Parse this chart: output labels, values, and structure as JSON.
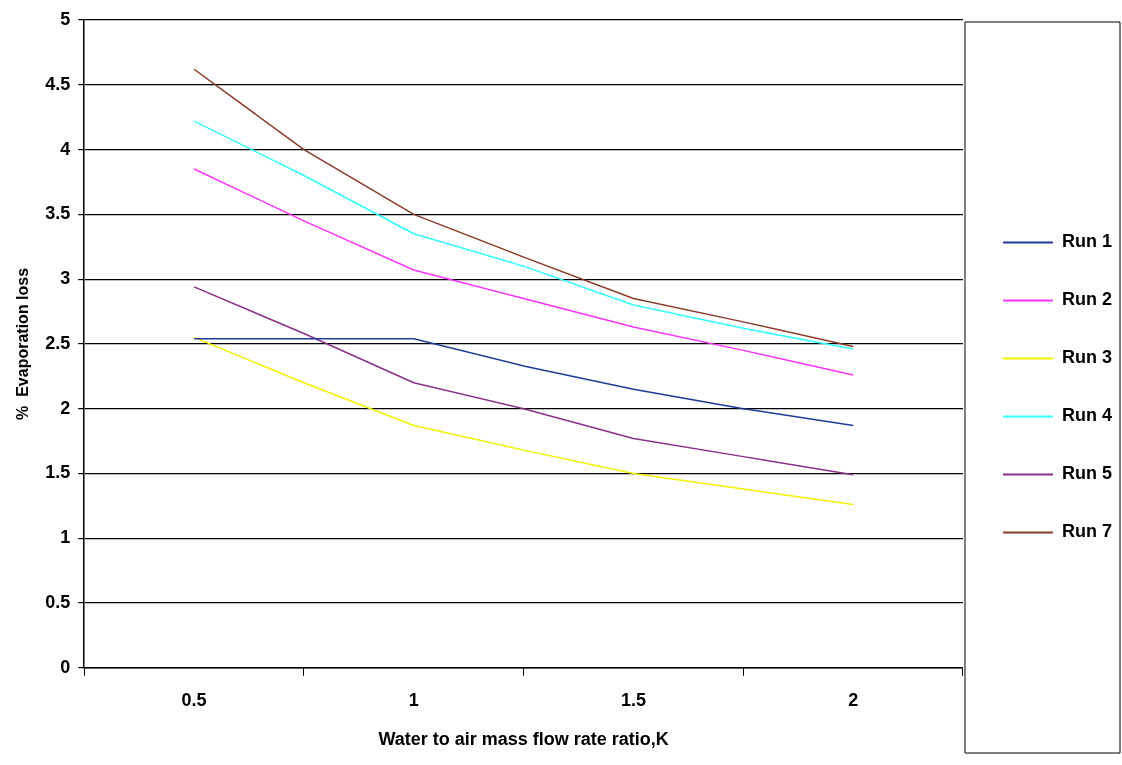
{
  "chart_data": {
    "type": "line",
    "xlabel": "Water to air mass flow rate ratio,K",
    "ylabel": "%  Evaporation loss",
    "x": [
      0.5,
      0.75,
      1,
      1.25,
      1.5,
      1.75,
      2
    ],
    "series": [
      {
        "name": "Run 1",
        "color": "#1f3a9a",
        "values": [
          2.54,
          2.54,
          2.54,
          2.33,
          2.15,
          2.0,
          1.87
        ]
      },
      {
        "name": "Run 2",
        "color": "#ff33ff",
        "values": [
          3.85,
          3.45,
          3.07,
          2.85,
          2.63,
          2.45,
          2.26
        ]
      },
      {
        "name": "Run 3",
        "color": "#f2f200",
        "values": [
          2.55,
          2.2,
          1.87,
          1.68,
          1.5,
          1.38,
          1.26
        ]
      },
      {
        "name": "Run 4",
        "color": "#33ffff",
        "values": [
          4.22,
          3.8,
          3.35,
          3.1,
          2.8,
          2.62,
          2.46
        ]
      },
      {
        "name": "Run 5",
        "color": "#8a2f8a",
        "values": [
          2.94,
          2.58,
          2.2,
          2.0,
          1.77,
          1.63,
          1.49
        ]
      },
      {
        "name": "Run 7",
        "color": "#8b3a2a",
        "values": [
          4.62,
          4.0,
          3.5,
          3.17,
          2.85,
          2.67,
          2.48
        ]
      }
    ],
    "xlim": [
      0.25,
      2.25
    ],
    "xticks": [
      {
        "value": 0.25,
        "label": null
      },
      0.5,
      {
        "value": 0.75,
        "label": null
      },
      1,
      {
        "value": 1.25,
        "label": null
      },
      1.5,
      {
        "value": 1.75,
        "label": null
      },
      2,
      {
        "value": 2.25,
        "label": null
      }
    ],
    "ylim": [
      0,
      5
    ],
    "yticks": [
      0,
      0.5,
      1,
      1.5,
      2,
      2.5,
      3,
      3.5,
      4,
      4.5,
      5
    ],
    "grid": "y",
    "legend": "right",
    "marker": "none",
    "line_style": "solid"
  }
}
